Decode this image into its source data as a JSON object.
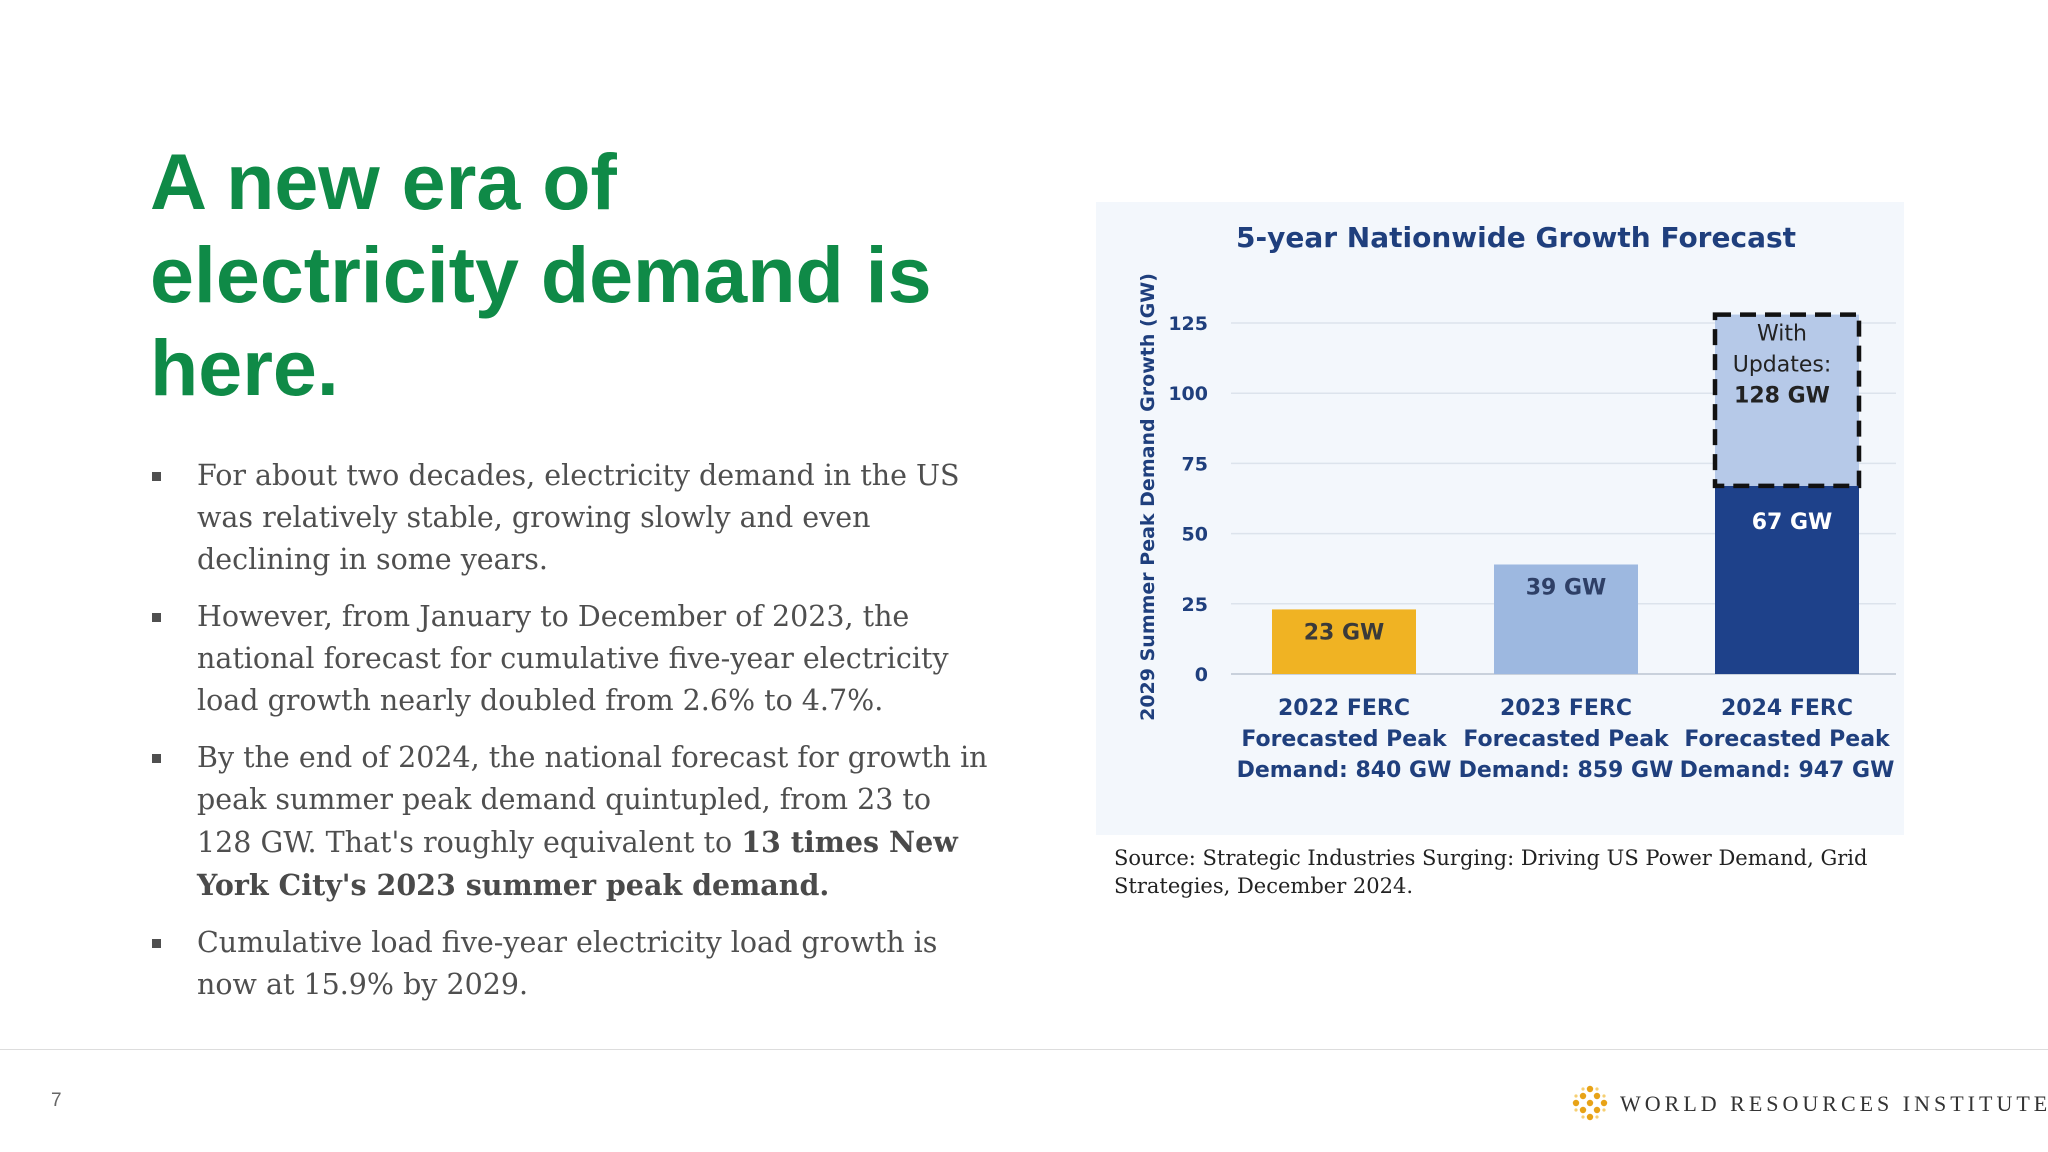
{
  "slide": {
    "title_lines": [
      "A new era of",
      "electricity demand is",
      "here."
    ],
    "bullets": [
      {
        "parts": [
          {
            "text": "For about two decades, electricity demand in the US was relatively stable, growing slowly and even declining in some years.",
            "bold": false
          }
        ]
      },
      {
        "parts": [
          {
            "text": "However, from January to December of 2023, the national forecast for cumulative five-year electricity load growth nearly doubled from 2.6% to 4.7%.",
            "bold": false
          }
        ]
      },
      {
        "parts": [
          {
            "text": "By the end of 2024, the national forecast for growth in peak summer peak demand quintupled, from 23 to 128 GW.  That's roughly equivalent to ",
            "bold": false
          },
          {
            "text": "13 times New York City's 2023 summer peak demand.",
            "bold": true
          }
        ]
      },
      {
        "parts": [
          {
            "text": "Cumulative load five-year electricity load growth is now at 15.9% by 2029.",
            "bold": false
          }
        ]
      }
    ],
    "source": "Source: Strategic Industries Surging: Driving US Power Demand, Grid Strategies, December 2024.",
    "page_number": "7",
    "logo_text": "WORLD RESOURCES INSTITUTE"
  },
  "chart_data": {
    "type": "bar",
    "title": "5-year Nationwide Growth Forecast",
    "ylabel": "2029 Summer Peak Demand Growth (GW)",
    "xlabel": "",
    "ylim": [
      0,
      125
    ],
    "yticks": [
      0,
      25,
      50,
      75,
      100,
      125
    ],
    "grid": true,
    "categories": [
      [
        "2022 FERC",
        "Forecasted Peak",
        "Demand: 840 GW"
      ],
      [
        "2023 FERC",
        "Forecasted Peak",
        "Demand: 859 GW"
      ],
      [
        "2024 FERC",
        "Forecasted Peak",
        "Demand: 947 GW"
      ]
    ],
    "values": [
      23,
      39,
      67
    ],
    "labels": [
      "23 GW",
      "39 GW",
      "67 GW"
    ],
    "colors": [
      "#f0b323",
      "#9db8e0",
      "#1e418a"
    ],
    "label_colors": [
      "#3a3a3a",
      "#2e3f66",
      "#ffffff"
    ],
    "update": {
      "category_index": 2,
      "total": 128,
      "label_lines": [
        "With",
        "Updates:",
        "128 GW"
      ],
      "fill": "#b6c9e8"
    },
    "colors_theme": {
      "title": "#1f3f7d",
      "axis_text": "#1f3f7d",
      "grid": "#dce3ec",
      "axis_line": "#c9d1dc"
    }
  }
}
